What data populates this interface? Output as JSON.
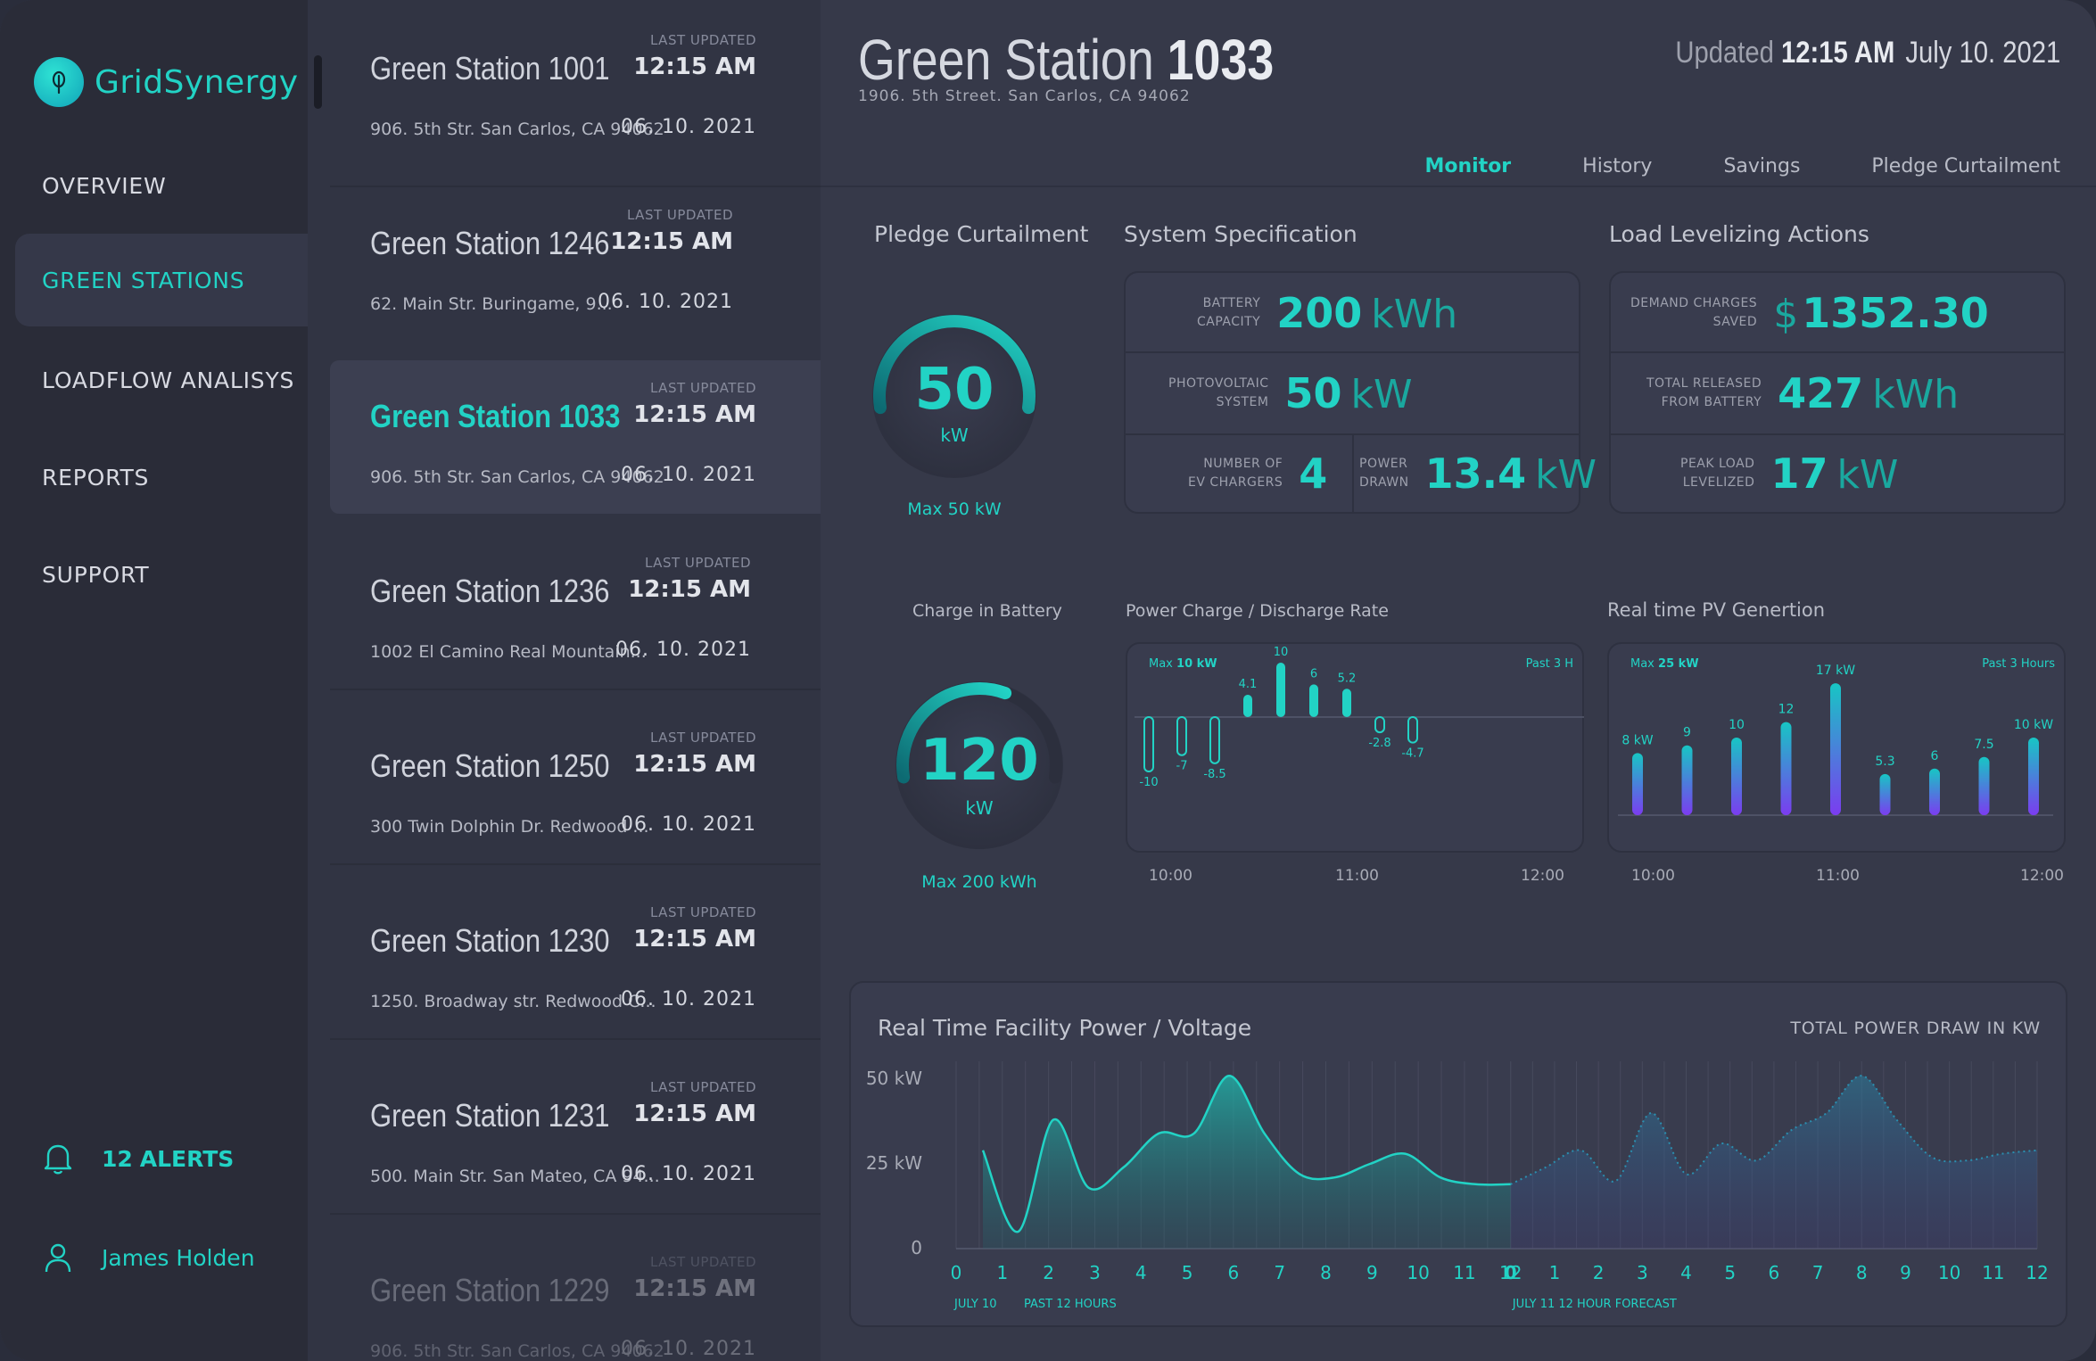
{
  "brand": {
    "name": "GridSynergy"
  },
  "nav": {
    "items": [
      {
        "label": "OVERVIEW"
      },
      {
        "label": "GREEN STATIONS"
      },
      {
        "label": "LOADFLOW ANALISYS"
      },
      {
        "label": "REPORTS"
      },
      {
        "label": "SUPPORT"
      }
    ],
    "alerts_count": "12",
    "alerts_label": "ALERTS",
    "user_name": "James Holden"
  },
  "stations": [
    {
      "name": "Green Station 1001",
      "last_updated_label": "LAST UPDATED",
      "time": "12:15 AM",
      "address": "906. 5th Str. San Carlos, CA 94062",
      "date": "06. 10. 2021"
    },
    {
      "name": "Green Station 1246",
      "last_updated_label": "LAST UPDATED",
      "time": "12:15 AM",
      "address": "62. Main Str. Buringame, 9...",
      "date": "06. 10. 2021"
    },
    {
      "name": "Green Station 1033",
      "last_updated_label": "LAST UPDATED",
      "time": "12:15 AM",
      "address": "906. 5th Str. San Carlos, CA 94062",
      "date": "06. 10. 2021"
    },
    {
      "name": "Green Station 1236",
      "last_updated_label": "LAST UPDATED",
      "time": "12:15 AM",
      "address": "1002 El Camino Real Mountain...",
      "date": "06. 10. 2021"
    },
    {
      "name": "Green Station 1250",
      "last_updated_label": "LAST UPDATED",
      "time": "12:15 AM",
      "address": "300 Twin Dolphin Dr. Redwood ...",
      "date": "06. 10. 2021"
    },
    {
      "name": "Green Station 1230",
      "last_updated_label": "LAST UPDATED",
      "time": "12:15 AM",
      "address": "1250. Broadway str. Redwood C...",
      "date": "06. 10. 2021"
    },
    {
      "name": "Green Station 1231",
      "last_updated_label": "LAST UPDATED",
      "time": "12:15 AM",
      "address": "500. Main Str. San Mateo, CA 94...",
      "date": "06. 10. 2021"
    },
    {
      "name": "Green Station 1229",
      "last_updated_label": "LAST UPDATED",
      "time": "12:15 AM",
      "address": "906. 5th Str. San Carlos, CA 94062",
      "date": "06. 10. 2021"
    }
  ],
  "header": {
    "title_prefix": "Green Station",
    "title_number": "1033",
    "address": "1906. 5th Street. San Carlos, CA 94062",
    "updated_label": "Updated",
    "updated_time": "12:15 AM",
    "updated_date": "July 10. 2021"
  },
  "tabs": [
    {
      "label": "Monitor"
    },
    {
      "label": "History"
    },
    {
      "label": "Savings"
    },
    {
      "label": "Pledge Curtailment"
    }
  ],
  "pledge": {
    "title": "Pledge Curtailment",
    "value": "50",
    "unit": "kW",
    "max_label": "Max 50 kW",
    "fraction": 1.0
  },
  "battery": {
    "title": "Charge in Battery",
    "value": "120",
    "unit": "kW",
    "max_label": "Max 200 kWh",
    "fraction": 0.6
  },
  "spec": {
    "title": "System Specification",
    "battery_label_1": "BATTERY",
    "battery_label_2": "CAPACITY",
    "battery_value": "200",
    "battery_unit": "kWh",
    "pv_label_1": "PHOTOVOLTAIC",
    "pv_label_2": "SYSTEM",
    "pv_value": "50",
    "pv_unit": "kW",
    "ev_label_1": "NUMBER OF",
    "ev_label_2": "EV CHARGERS",
    "ev_value": "4",
    "power_label_1": "POWER",
    "power_label_2": "DRAWN",
    "power_value": "13.4",
    "power_unit": "kW"
  },
  "load": {
    "title": "Load Levelizing Actions",
    "demand_label_1": "DEMAND CHARGES",
    "demand_label_2": "SAVED",
    "demand_currency": "$",
    "demand_value": "1352.30",
    "released_label_1": "TOTAL RELEASED",
    "released_label_2": "FROM BATTERY",
    "released_value": "427",
    "released_unit": "kWh",
    "peak_label_1": "PEAK LOAD",
    "peak_label_2": "LEVELIZED",
    "peak_value": "17",
    "peak_unit": "kW"
  },
  "chart_data": [
    {
      "type": "bar",
      "title": "Power Charge / Discharge Rate",
      "max_prefix": "Max",
      "max_value": "10 kW",
      "period": "Past 3 H",
      "values": [
        -10,
        -7,
        -8.5,
        4.1,
        10,
        6,
        5.2,
        -2.8,
        -4.7
      ],
      "value_labels": [
        "-10",
        "-7",
        "-8.5",
        "4.1",
        "10",
        "6",
        "5.2",
        "-2.8",
        "-4.7"
      ],
      "x_ticks": [
        "10:00",
        "11:00",
        "12:00"
      ]
    },
    {
      "type": "bar",
      "title": "Real time PV Genertion",
      "max_prefix": "Max",
      "max_value": "25 kW",
      "period": "Past 3 Hours",
      "values": [
        8,
        9,
        10,
        12,
        17,
        5.3,
        6,
        7.5,
        10
      ],
      "value_labels": [
        "8 kW",
        "9",
        "10",
        "12",
        "17 kW",
        "5.3",
        "6",
        "7.5",
        "10 kW"
      ],
      "x_ticks": [
        "10:00",
        "11:00",
        "12:00"
      ]
    },
    {
      "type": "area",
      "title": "Real Time Facility Power / Voltage",
      "right_label": "TOTAL POWER DRAW IN KW",
      "y_ticks": [
        "50 kW",
        "25 kW",
        "0"
      ],
      "ylim": [
        0,
        50
      ],
      "x_past": [
        "0",
        "1",
        "2",
        "3",
        "4",
        "5",
        "6",
        "7",
        "8",
        "9",
        "10",
        "11",
        "12"
      ],
      "x_forecast": [
        "0",
        "1",
        "2",
        "3",
        "4",
        "5",
        "6",
        "7",
        "8",
        "9",
        "10",
        "11",
        "12"
      ],
      "past_caption_date": "JULY 10",
      "past_caption": "PAST 12 HOURS",
      "forecast_caption": "JULY 11 12 HOUR FORECAST",
      "past_series": [
        29,
        5,
        38,
        18,
        24,
        34,
        34,
        51,
        34,
        22,
        21,
        25,
        28,
        21,
        19,
        19
      ],
      "forecast_series": [
        19,
        24,
        29,
        20,
        40,
        22,
        31,
        26,
        35,
        40,
        51,
        38,
        27,
        26,
        28,
        29
      ]
    }
  ],
  "colors": {
    "accent": "#22d3c5",
    "pv_top": "#17c6c4",
    "pv_bottom": "#7b3cf0"
  }
}
